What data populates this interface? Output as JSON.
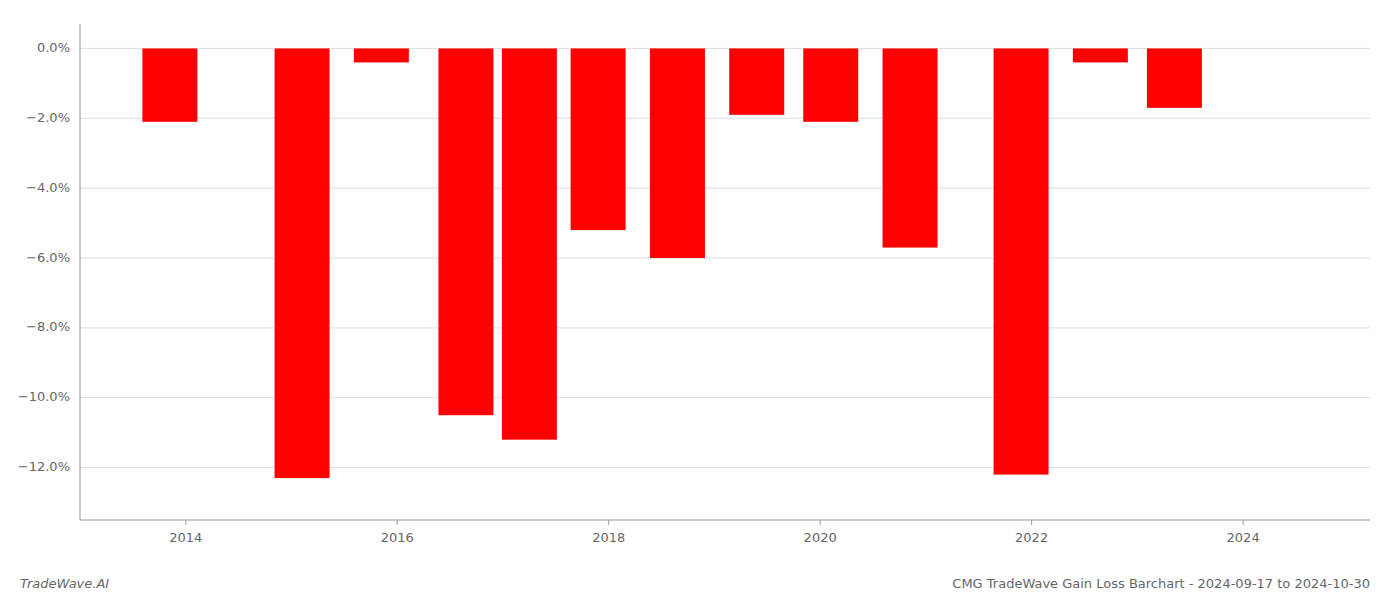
{
  "chart_data": {
    "type": "bar",
    "title": "CMG TradeWave Gain Loss Barchart - 2024-09-17 to 2024-10-30",
    "annotations": [
      "TradeWave.AI"
    ],
    "x": [
      2013.85,
      2015.1,
      2015.85,
      2016.65,
      2017.25,
      2017.9,
      2018.65,
      2019.4,
      2020.1,
      2020.85,
      2021.9,
      2022.65,
      2023.35
    ],
    "values": [
      -2.1,
      -12.3,
      -0.4,
      -10.5,
      -11.2,
      -5.2,
      -6.0,
      -1.9,
      -2.1,
      -5.7,
      -12.2,
      -0.4,
      -1.7
    ],
    "color": "#ff0000",
    "xlim": [
      2013.0,
      2025.2
    ],
    "xticks": [
      2014,
      2016,
      2018,
      2020,
      2022,
      2024
    ],
    "ylim": [
      -13.5,
      0.7
    ],
    "yticks": [
      {
        "value": 0.0,
        "label": "0.0%"
      },
      {
        "value": -2.0,
        "label": "−2.0%"
      },
      {
        "value": -4.0,
        "label": "−4.0%"
      },
      {
        "value": -6.0,
        "label": "−6.0%"
      },
      {
        "value": -8.0,
        "label": "−8.0%"
      },
      {
        "value": -10.0,
        "label": "−10.0%"
      },
      {
        "value": -12.0,
        "label": "−12.0%"
      }
    ],
    "grid": true
  }
}
